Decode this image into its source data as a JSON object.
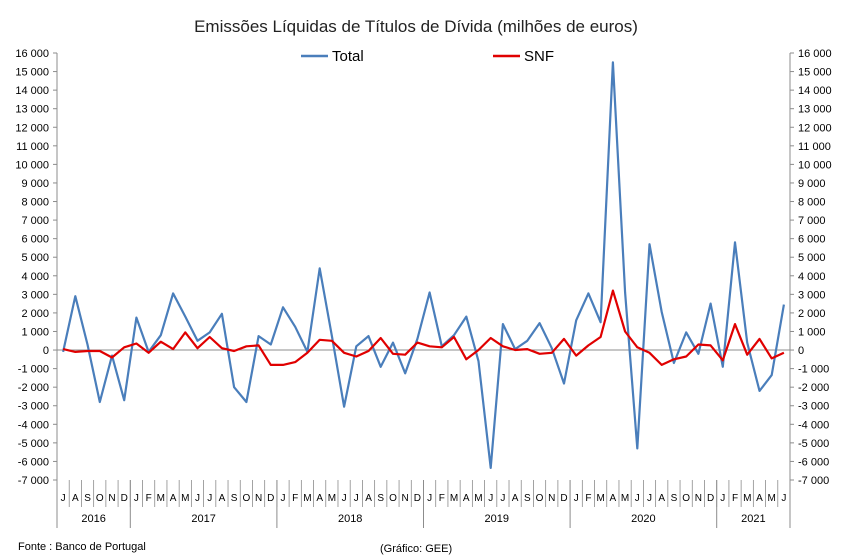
{
  "chart_data": {
    "type": "line",
    "title": "Emissões Líquidas de Títulos de Dívida (milhões de euros)",
    "ylim": [
      -7000,
      16000
    ],
    "y_ticks": [
      "16 000",
      "15 000",
      "14 000",
      "13 000",
      "12 000",
      "11 000",
      "10 000",
      "9 000",
      "8 000",
      "7 000",
      "6 000",
      "5 000",
      "4 000",
      "3 000",
      "2 000",
      "1 000",
      "0",
      "-1 000",
      "-2 000",
      "-3 000",
      "-4 000",
      "-5 000",
      "-6 000",
      "-7 000"
    ],
    "month_labels": [
      "J",
      "A",
      "S",
      "O",
      "N",
      "D",
      "J",
      "F",
      "M",
      "A",
      "M",
      "J",
      "J",
      "A",
      "S",
      "O",
      "N",
      "D",
      "J",
      "F",
      "M",
      "A",
      "M",
      "J",
      "J",
      "A",
      "S",
      "O",
      "N",
      "D",
      "J",
      "F",
      "M",
      "A",
      "M",
      "J",
      "J",
      "A",
      "S",
      "O",
      "N",
      "D",
      "J",
      "F",
      "M",
      "A",
      "M",
      "J",
      "J",
      "A",
      "S",
      "O",
      "N",
      "D",
      "J",
      "F",
      "M",
      "A",
      "M",
      "J"
    ],
    "year_groups": [
      {
        "label": "2016",
        "count": 6
      },
      {
        "label": "2017",
        "count": 12
      },
      {
        "label": "2018",
        "count": 12
      },
      {
        "label": "2019",
        "count": 12
      },
      {
        "label": "2020",
        "count": 12
      },
      {
        "label": "2021",
        "count": 6
      }
    ],
    "series": [
      {
        "name": "Total",
        "color": "#4A7EBB",
        "values": [
          -100,
          2900,
          300,
          -2800,
          -300,
          -2700,
          1750,
          -100,
          800,
          3050,
          1800,
          500,
          950,
          1950,
          -2000,
          -2800,
          750,
          300,
          2300,
          1250,
          -100,
          4400,
          750,
          -3050,
          200,
          750,
          -900,
          400,
          -1250,
          600,
          3100,
          200,
          800,
          1800,
          -600,
          -6350,
          1400,
          50,
          500,
          1450,
          100,
          -1800,
          1600,
          3050,
          1500,
          15500,
          3100,
          -5300,
          5700,
          2050,
          -700,
          950,
          -200,
          2500,
          -900,
          5800,
          400,
          -2200,
          -1350,
          2450
        ]
      },
      {
        "name": "SNF",
        "color": "#E00000",
        "values": [
          50,
          -100,
          -50,
          -50,
          -400,
          150,
          350,
          -150,
          450,
          50,
          950,
          100,
          700,
          100,
          -50,
          200,
          250,
          -800,
          -800,
          -650,
          -150,
          550,
          500,
          -150,
          -350,
          -50,
          650,
          -200,
          -250,
          400,
          200,
          150,
          700,
          -500,
          0,
          650,
          200,
          0,
          50,
          -200,
          -150,
          600,
          -300,
          250,
          700,
          3200,
          1000,
          150,
          -150,
          -800,
          -500,
          -350,
          300,
          250,
          -550,
          1400,
          -250,
          600,
          -450,
          -150
        ]
      }
    ]
  },
  "legend": {
    "total": "Total",
    "snf": "SNF"
  },
  "footer": {
    "source": "Fonte : Banco de Portugal",
    "credit": "(Gráfico: GEE)"
  }
}
